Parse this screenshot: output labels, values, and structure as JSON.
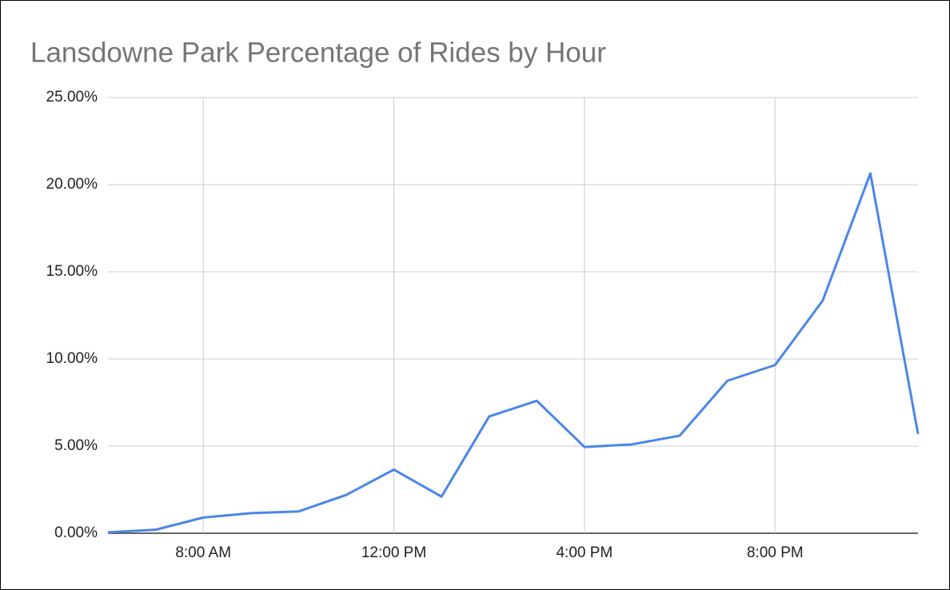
{
  "chart_data": {
    "type": "line",
    "title": "Lansdowne Park Percentage of Rides by Hour",
    "x": [
      6,
      7,
      8,
      9,
      10,
      11,
      12,
      13,
      14,
      15,
      16,
      17,
      18,
      19,
      20,
      21,
      22,
      23
    ],
    "series": [
      {
        "name": "Percentage of Rides",
        "color": "#4a86e8",
        "values": [
          0.05,
          0.2,
          0.9,
          1.15,
          1.25,
          2.2,
          3.65,
          2.1,
          6.7,
          7.6,
          4.95,
          5.1,
          5.6,
          8.75,
          9.65,
          13.35,
          20.65,
          5.7
        ]
      }
    ],
    "xlim": [
      6,
      23
    ],
    "xticks": [
      {
        "value": 8,
        "label": "8:00 AM"
      },
      {
        "value": 12,
        "label": "12:00 PM"
      },
      {
        "value": 16,
        "label": "4:00 PM"
      },
      {
        "value": 20,
        "label": "8:00 PM"
      }
    ],
    "ylim": [
      0,
      25
    ],
    "yticks": [
      {
        "value": 0,
        "label": "0.00%"
      },
      {
        "value": 5,
        "label": "5.00%"
      },
      {
        "value": 10,
        "label": "10.00%"
      },
      {
        "value": 15,
        "label": "15.00%"
      },
      {
        "value": 20,
        "label": "20.00%"
      },
      {
        "value": 25,
        "label": "25.00%"
      }
    ],
    "grid": true
  }
}
